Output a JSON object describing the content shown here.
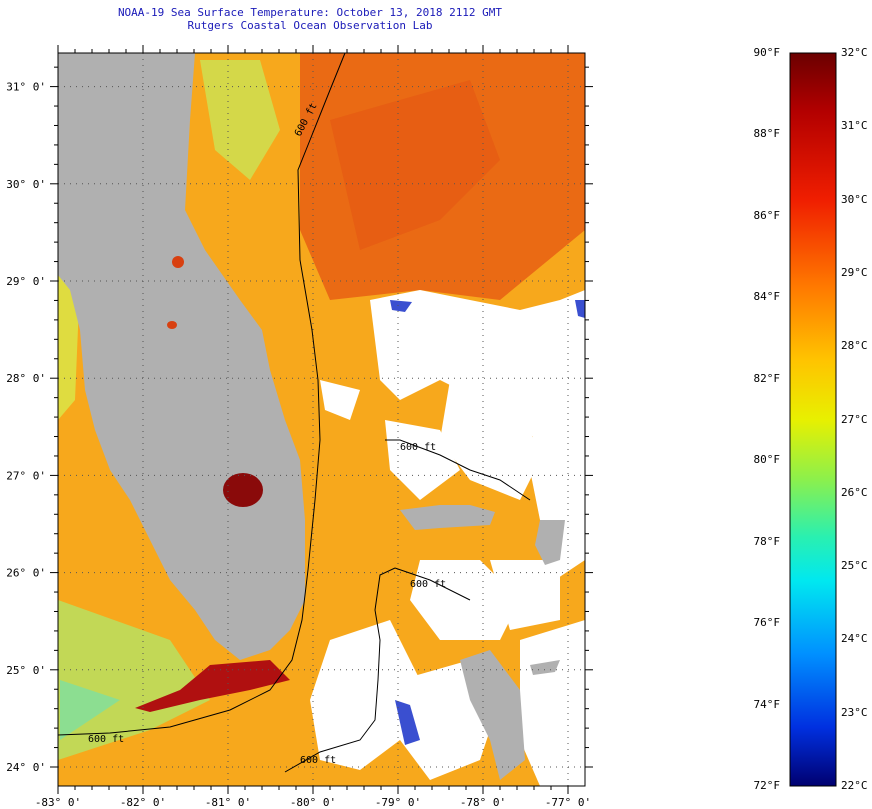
{
  "title": {
    "line1": "NOAA-19 Sea Surface Temperature:  October 13, 2018 2112 GMT",
    "line2": "Rutgers Coastal Ocean Observation Lab"
  },
  "map": {
    "lat_labels": [
      "31° 0'",
      "30° 0'",
      "29° 0'",
      "28° 0'",
      "27° 0'",
      "26° 0'",
      "25° 0'",
      "24° 0'"
    ],
    "lon_labels": [
      "-83° 0'",
      "-82° 0'",
      "-81° 0'",
      "-80° 0'",
      "-79° 0'",
      "-78° 0'",
      "-77° 0'"
    ],
    "lat_values": [
      31,
      30,
      29,
      28,
      27,
      26,
      25,
      24
    ],
    "lon_values": [
      -83,
      -82,
      -81,
      -80,
      -79,
      -78,
      -77
    ],
    "contour_label": "600 ft",
    "colors": {
      "land": "#b0b0b0",
      "clouds": "#ffffff",
      "warm_water": "#f7a81c",
      "hot_water": "#e55a12",
      "cool_water": "#9fe07a"
    }
  },
  "colorbar": {
    "fahrenheit_labels": [
      "90°F",
      "88°F",
      "86°F",
      "84°F",
      "82°F",
      "80°F",
      "78°F",
      "76°F",
      "74°F",
      "72°F"
    ],
    "celsius_labels": [
      "32°C",
      "31°C",
      "30°C",
      "29°C",
      "28°C",
      "27°C",
      "26°C",
      "25°C",
      "24°C",
      "23°C",
      "22°C"
    ],
    "fahrenheit_range": [
      72,
      90
    ],
    "celsius_range": [
      22,
      32
    ]
  }
}
